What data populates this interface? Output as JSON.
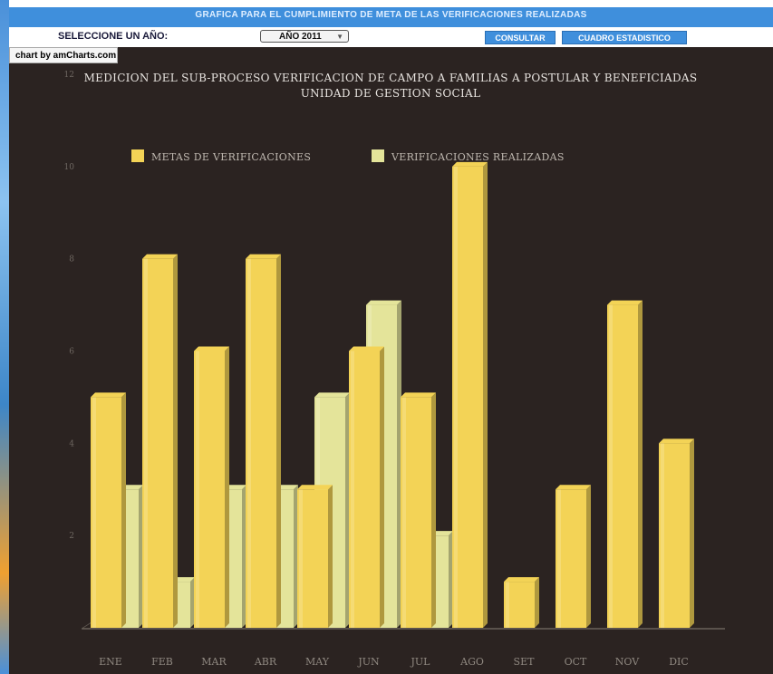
{
  "header": {
    "title": "GRAFICA PARA EL CUMPLIMIENTO DE META DE LAS VERIFICACIONES REALIZADAS"
  },
  "controls": {
    "select_label": "SELECCIONE UN AÑO:",
    "year_value": "AÑO 2011",
    "consultar_label": "CONSULTAR",
    "cuadro_label": "CUADRO ESTADISTICO"
  },
  "credit": "chart by amCharts.com",
  "colors": {
    "meta": "#f3d356",
    "realizadas": "#e4e49a",
    "background": "#2b2321",
    "header": "#3f8fdc"
  },
  "chart_data": {
    "type": "bar",
    "title": "MEDICION DEL SUB-PROCESO VERIFICACION DE CAMPO A FAMILIAS A POSTULAR Y BENEFICIADAS",
    "subtitle": "UNIDAD DE GESTION SOCIAL",
    "categories": [
      "ENE",
      "FEB",
      "MAR",
      "ABR",
      "MAY",
      "JUN",
      "JUL",
      "AGO",
      "SET",
      "OCT",
      "NOV",
      "DIC"
    ],
    "series": [
      {
        "name": "METAS DE VERIFICACIONES",
        "values": [
          5,
          8,
          6,
          8,
          3,
          6,
          5,
          10,
          1,
          3,
          7,
          4
        ]
      },
      {
        "name": "VERIFICACIONES REALIZADAS",
        "values": [
          3,
          1,
          3,
          3,
          5,
          7,
          2,
          0,
          0,
          0,
          0,
          0
        ]
      }
    ],
    "yticks": [
      "2",
      "4",
      "6",
      "8",
      "10",
      "12"
    ],
    "ylim": [
      0,
      12
    ],
    "legend": "top-left",
    "grid": false,
    "style": "3d"
  }
}
